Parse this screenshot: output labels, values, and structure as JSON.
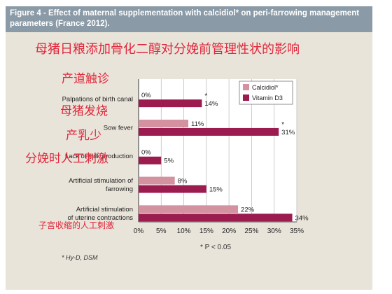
{
  "header": {
    "title": "Figure 4 - Effect of maternal supplementation with calcidiol* on peri-farrowing management parameters (France 2012)."
  },
  "overlay": {
    "title_cn": "母猪日粮添加骨化二醇对分娩前管理性状的影响",
    "labels_cn": [
      "产道触诊",
      "母猪发烧",
      "产乳少",
      "分娩时人工刺激",
      "子宫收缩的人工刺激"
    ]
  },
  "chart_data": {
    "type": "bar",
    "orientation": "horizontal",
    "categories": [
      [
        "Palpations of birth canal"
      ],
      [
        "Sow fever"
      ],
      [
        "Lack of milk production"
      ],
      [
        "Artificial stimulation of",
        "farrowing"
      ],
      [
        "Artificial stimulation",
        "of uterine contractions"
      ]
    ],
    "series": [
      {
        "name": "Calcidiol*",
        "color": "#d4919f",
        "values": [
          0,
          11,
          0,
          8,
          22
        ],
        "labels": [
          "0%",
          "11%",
          "0%",
          "8%",
          "22%"
        ]
      },
      {
        "name": "Vitamin D3",
        "color": "#9c1c50",
        "values": [
          14,
          31,
          5,
          15,
          34
        ],
        "labels": [
          "14%",
          "31%",
          "5%",
          "15%",
          "34%"
        ]
      }
    ],
    "significance": [
      {
        "category": 0,
        "mark": "*"
      },
      {
        "category": 1,
        "mark": "*"
      }
    ],
    "xlim": [
      0,
      35
    ],
    "xticks": [
      "0%",
      "5%",
      "10%",
      "15%",
      "20%",
      "25%",
      "30%",
      "35%"
    ],
    "footnote_p": "* P < 0.05",
    "legend_position": "top-right"
  },
  "footer": {
    "source": "* Hy-D, DSM"
  }
}
